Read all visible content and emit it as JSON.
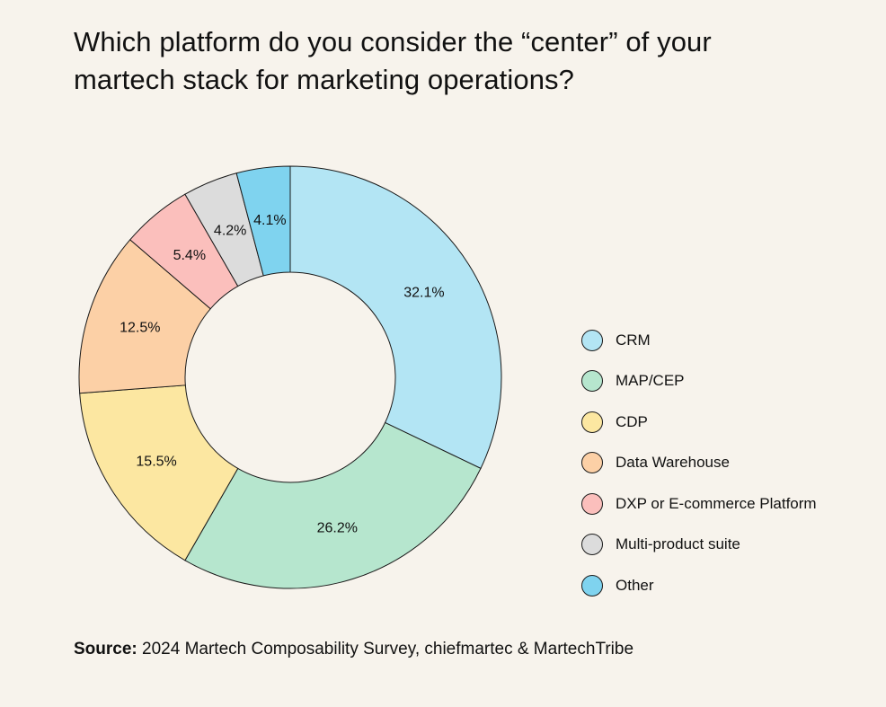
{
  "title": {
    "line1": "Which platform do you consider the “center” of your",
    "line2": "martech stack for marketing operations?"
  },
  "source": {
    "label": "Source:",
    "text": " 2024 Martech Composability Survey, chiefmartec & MartechTribe"
  },
  "chart_data": {
    "type": "pie",
    "subtype": "donut",
    "categories": [
      "CRM",
      "MAP/CEP",
      "CDP",
      "Data Warehouse",
      "DXP or E-commerce Platform",
      "Multi-product suite",
      "Other"
    ],
    "values": [
      32.1,
      26.2,
      15.5,
      12.5,
      5.4,
      4.2,
      4.1
    ],
    "labels": [
      "32.1%",
      "26.2%",
      "15.5%",
      "12.5%",
      "5.4%",
      "4.2%",
      "4.1%"
    ],
    "colors": [
      "#b3e5f4",
      "#b6e6ce",
      "#fce7a1",
      "#fcd0a6",
      "#fbbfbc",
      "#dcdcdc",
      "#7fd3ef"
    ],
    "legend_position": "right",
    "start_angle": "top, clockwise"
  }
}
